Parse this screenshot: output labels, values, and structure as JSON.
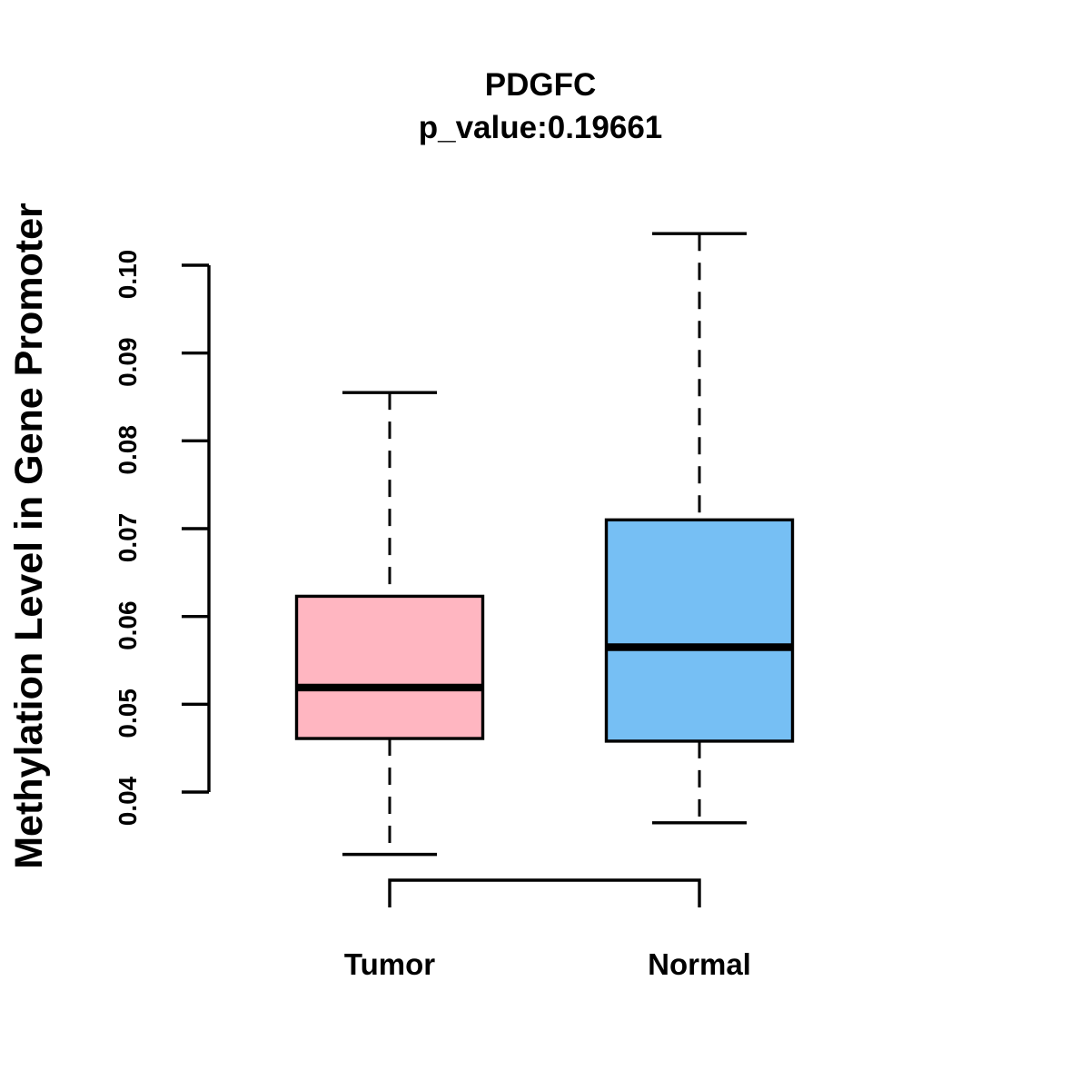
{
  "chart_data": {
    "type": "boxplot",
    "title": "PDGFC",
    "subtitle": "p_value:0.19661",
    "ylabel": "Methylation Level in Gene Promoter",
    "xlabel": "",
    "categories": [
      "Tumor",
      "Normal"
    ],
    "y_ticks": [
      {
        "value": 0.04,
        "label": "0.04"
      },
      {
        "value": 0.05,
        "label": "0.05"
      },
      {
        "value": 0.06,
        "label": "0.06"
      },
      {
        "value": 0.07,
        "label": "0.07"
      },
      {
        "value": 0.08,
        "label": "0.08"
      },
      {
        "value": 0.09,
        "label": "0.09"
      },
      {
        "value": 0.1,
        "label": "0.10"
      }
    ],
    "y_axis_tick_range": [
      0.04,
      0.1
    ],
    "grid": false,
    "legend": "none",
    "stroke_color": "#000000",
    "background_color": "#ffffff",
    "series": [
      {
        "name": "Tumor",
        "fill": "#FFB6C1",
        "whisker_low": 0.0329,
        "q1": 0.0461,
        "median": 0.0519,
        "q3": 0.0623,
        "whisker_high": 0.0855
      },
      {
        "name": "Normal",
        "fill": "#76BFF4",
        "whisker_low": 0.0365,
        "q1": 0.0458,
        "median": 0.0565,
        "q3": 0.071,
        "whisker_high": 0.1036
      }
    ]
  }
}
